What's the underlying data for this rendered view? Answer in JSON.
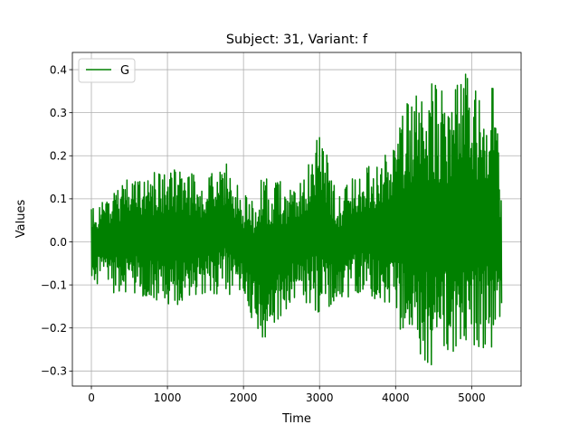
{
  "chart_data": {
    "type": "line",
    "title": "Subject: 31, Variant: f",
    "xlabel": "Time",
    "ylabel": "Values",
    "xlim": [
      -250,
      5650
    ],
    "ylim": [
      -0.335,
      0.44
    ],
    "xticks": [
      0,
      1000,
      2000,
      3000,
      4000,
      5000
    ],
    "xtick_labels": [
      "0",
      "1000",
      "2000",
      "3000",
      "4000",
      "5000"
    ],
    "yticks": [
      -0.3,
      -0.2,
      -0.1,
      0.0,
      0.1,
      0.2,
      0.3,
      0.4
    ],
    "ytick_labels": [
      "−0.3",
      "−0.2",
      "−0.1",
      "0.0",
      "0.1",
      "0.2",
      "0.3",
      "0.4"
    ],
    "grid": true,
    "legend_position": "upper-left",
    "series": [
      {
        "name": "G",
        "color": "#008000",
        "n_points": 5400,
        "envelope_x": [
          0,
          250,
          500,
          750,
          1000,
          1250,
          1500,
          1750,
          2000,
          2250,
          2500,
          2750,
          3000,
          3250,
          3500,
          3750,
          4000,
          4150,
          4300,
          4500,
          4700,
          4900,
          5100,
          5300,
          5400
        ],
        "envelope_max": [
          0.08,
          0.12,
          0.15,
          0.16,
          0.17,
          0.17,
          0.15,
          0.19,
          0.11,
          0.15,
          0.14,
          0.14,
          0.26,
          0.11,
          0.16,
          0.19,
          0.22,
          0.34,
          0.35,
          0.37,
          0.34,
          0.4,
          0.34,
          0.38,
          0.08
        ],
        "envelope_min": [
          -0.09,
          -0.12,
          -0.12,
          -0.13,
          -0.16,
          -0.14,
          -0.13,
          -0.12,
          -0.13,
          -0.25,
          -0.17,
          -0.13,
          -0.18,
          -0.14,
          -0.12,
          -0.14,
          -0.15,
          -0.29,
          -0.27,
          -0.3,
          -0.28,
          -0.29,
          -0.26,
          -0.25,
          -0.18
        ]
      }
    ]
  }
}
